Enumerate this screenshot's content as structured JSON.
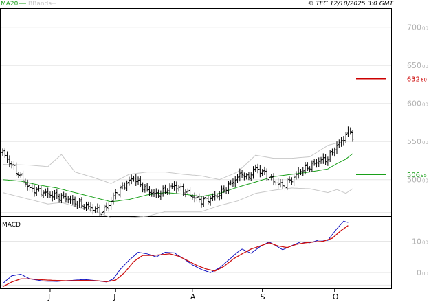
{
  "header": {
    "legend_ma": "MA20",
    "legend_bb": "BBands",
    "copyright": "© TEC 12/10/2025 3:0 GMT"
  },
  "colors": {
    "price": "#000000",
    "ma20": "#1aa01a",
    "bbands": "#c8c8c8",
    "resistance": "#cc0000",
    "support": "#1aa01a",
    "macd": "#1010c0",
    "signal": "#cc1010",
    "grid": "#e6e6e6",
    "axis": "#000000"
  },
  "chart_data": [
    {
      "type": "ohlc",
      "title": "",
      "legend": [
        "MA20",
        "BBands"
      ],
      "ylim": [
        452,
        725
      ],
      "y_ticks": [
        {
          "int": "700",
          "dec": "00",
          "value": 700
        },
        {
          "int": "650",
          "dec": "00",
          "value": 650
        },
        {
          "int": "600",
          "dec": "00",
          "value": 600
        },
        {
          "int": "550",
          "dec": "00",
          "value": 550
        },
        {
          "int": "500",
          "dec": "00",
          "value": 500
        }
      ],
      "x_labels": [
        {
          "label": "J",
          "index": 21
        },
        {
          "label": "J",
          "index": 50
        },
        {
          "label": "A",
          "index": 84
        },
        {
          "label": "S",
          "index": 115
        },
        {
          "label": "O",
          "index": 147
        }
      ],
      "n_bars": 156,
      "levels": [
        {
          "name": "resistance",
          "int": "632",
          "dec": "60",
          "value": 632.6
        },
        {
          "name": "support",
          "int": "506",
          "dec": "95",
          "value": 506.95
        }
      ],
      "close_anchors": [
        [
          0,
          535
        ],
        [
          8,
          503
        ],
        [
          12,
          488
        ],
        [
          16,
          485
        ],
        [
          20,
          481
        ],
        [
          24,
          478
        ],
        [
          28,
          476
        ],
        [
          32,
          470
        ],
        [
          36,
          466
        ],
        [
          40,
          462
        ],
        [
          44,
          458
        ],
        [
          47,
          467
        ],
        [
          50,
          482
        ],
        [
          54,
          493
        ],
        [
          58,
          503
        ],
        [
          60,
          496
        ],
        [
          64,
          486
        ],
        [
          68,
          480
        ],
        [
          72,
          486
        ],
        [
          76,
          492
        ],
        [
          80,
          486
        ],
        [
          84,
          478
        ],
        [
          88,
          472
        ],
        [
          92,
          475
        ],
        [
          96,
          481
        ],
        [
          100,
          492
        ],
        [
          104,
          503
        ],
        [
          106,
          509
        ],
        [
          108,
          501
        ],
        [
          112,
          515
        ],
        [
          116,
          508
        ],
        [
          120,
          498
        ],
        [
          124,
          492
        ],
        [
          128,
          500
        ],
        [
          132,
          512
        ],
        [
          136,
          517
        ],
        [
          140,
          525
        ],
        [
          144,
          527
        ],
        [
          146,
          537
        ],
        [
          150,
          551
        ],
        [
          152,
          558
        ],
        [
          154,
          567
        ],
        [
          155,
          553
        ]
      ],
      "ma20_anchors": [
        [
          0,
          500
        ],
        [
          8,
          498
        ],
        [
          16,
          493
        ],
        [
          24,
          489
        ],
        [
          32,
          483
        ],
        [
          40,
          477
        ],
        [
          48,
          471
        ],
        [
          56,
          474
        ],
        [
          64,
          480
        ],
        [
          72,
          483
        ],
        [
          80,
          481
        ],
        [
          88,
          478
        ],
        [
          96,
          482
        ],
        [
          104,
          490
        ],
        [
          112,
          497
        ],
        [
          120,
          504
        ],
        [
          128,
          507
        ],
        [
          136,
          510
        ],
        [
          144,
          514
        ],
        [
          148,
          521
        ],
        [
          152,
          527
        ],
        [
          155,
          534
        ]
      ],
      "bb_upper_anchors": [
        [
          0,
          520
        ],
        [
          12,
          519
        ],
        [
          20,
          517
        ],
        [
          26,
          533
        ],
        [
          32,
          510
        ],
        [
          40,
          503
        ],
        [
          48,
          495
        ],
        [
          56,
          507
        ],
        [
          64,
          510
        ],
        [
          72,
          510
        ],
        [
          80,
          507
        ],
        [
          88,
          505
        ],
        [
          96,
          500
        ],
        [
          104,
          510
        ],
        [
          112,
          532
        ],
        [
          120,
          528
        ],
        [
          128,
          528
        ],
        [
          136,
          530
        ],
        [
          144,
          545
        ],
        [
          148,
          548
        ]
      ],
      "bb_lower_anchors": [
        [
          0,
          483
        ],
        [
          12,
          474
        ],
        [
          20,
          468
        ],
        [
          26,
          470
        ],
        [
          32,
          465
        ],
        [
          40,
          459
        ],
        [
          44,
          455
        ],
        [
          48,
          450
        ],
        [
          56,
          450
        ],
        [
          64,
          452
        ],
        [
          72,
          458
        ],
        [
          80,
          458
        ],
        [
          88,
          458
        ],
        [
          96,
          466
        ],
        [
          104,
          472
        ],
        [
          112,
          482
        ],
        [
          120,
          486
        ],
        [
          128,
          489
        ],
        [
          136,
          488
        ],
        [
          144,
          483
        ],
        [
          148,
          487
        ],
        [
          152,
          482
        ],
        [
          155,
          488
        ]
      ]
    },
    {
      "type": "line",
      "title": "MACD",
      "series": [
        {
          "name": "",
          "role": "macd"
        },
        {
          "name": "",
          "role": "signal"
        }
      ],
      "ylim": [
        -5.0,
        18.0
      ],
      "y_ticks": [
        {
          "int": "10",
          "dec": "00",
          "value": 10
        },
        {
          "int": "0",
          "dec": "00",
          "value": 0
        }
      ],
      "macd_anchors": [
        [
          0,
          -3.5
        ],
        [
          4,
          -1
        ],
        [
          8,
          -0.5
        ],
        [
          12,
          -2
        ],
        [
          18,
          -2.7
        ],
        [
          24,
          -2.8
        ],
        [
          30,
          -2.5
        ],
        [
          36,
          -2.2
        ],
        [
          42,
          -2.6
        ],
        [
          46,
          -3.0
        ],
        [
          49,
          -2.0
        ],
        [
          52,
          1.0
        ],
        [
          56,
          4.0
        ],
        [
          60,
          6.5
        ],
        [
          64,
          6.0
        ],
        [
          68,
          5.0
        ],
        [
          72,
          6.5
        ],
        [
          76,
          6.3
        ],
        [
          80,
          4.5
        ],
        [
          84,
          2.5
        ],
        [
          88,
          1.0
        ],
        [
          92,
          0.0
        ],
        [
          96,
          1.5
        ],
        [
          100,
          4.0
        ],
        [
          104,
          6.5
        ],
        [
          106,
          7.5
        ],
        [
          110,
          6.2
        ],
        [
          114,
          8.3
        ],
        [
          118,
          9.8
        ],
        [
          120,
          9.0
        ],
        [
          124,
          7.3
        ],
        [
          128,
          8.6
        ],
        [
          132,
          9.8
        ],
        [
          136,
          9.5
        ],
        [
          140,
          10.4
        ],
        [
          144,
          10.3
        ],
        [
          148,
          14.0
        ],
        [
          151,
          16.4
        ],
        [
          153,
          16.0
        ]
      ],
      "signal_anchors": [
        [
          0,
          -4.5
        ],
        [
          4,
          -3
        ],
        [
          8,
          -2
        ],
        [
          12,
          -2
        ],
        [
          20,
          -2.4
        ],
        [
          28,
          -2.6
        ],
        [
          36,
          -2.5
        ],
        [
          42,
          -2.6
        ],
        [
          46,
          -2.9
        ],
        [
          50,
          -2.4
        ],
        [
          54,
          0.0
        ],
        [
          58,
          3.5
        ],
        [
          62,
          5.5
        ],
        [
          66,
          5.5
        ],
        [
          70,
          5.7
        ],
        [
          74,
          6.0
        ],
        [
          78,
          5.2
        ],
        [
          82,
          3.8
        ],
        [
          86,
          2.3
        ],
        [
          90,
          1.2
        ],
        [
          94,
          0.5
        ],
        [
          98,
          2.0
        ],
        [
          102,
          4.3
        ],
        [
          106,
          6.0
        ],
        [
          110,
          7.5
        ],
        [
          114,
          8.5
        ],
        [
          118,
          9.5
        ],
        [
          122,
          8.5
        ],
        [
          126,
          8.0
        ],
        [
          130,
          9.0
        ],
        [
          134,
          9.5
        ],
        [
          138,
          9.8
        ],
        [
          142,
          10.0
        ],
        [
          146,
          11.0
        ],
        [
          150,
          13.5
        ],
        [
          153,
          15.0
        ]
      ]
    }
  ]
}
